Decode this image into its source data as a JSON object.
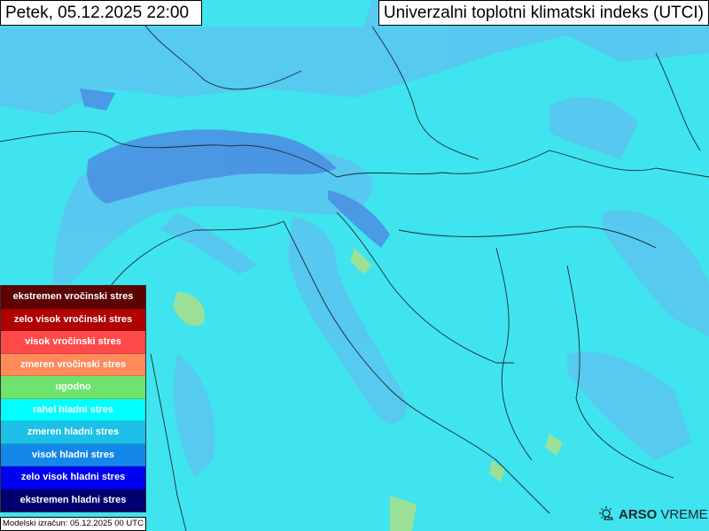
{
  "header": {
    "date_title": "Petek, 05.12.2025 22:00",
    "product_title": "Univerzalni toplotni klimatski indeks (UTCI)"
  },
  "legend": {
    "items": [
      {
        "label": "ekstremen vročinski stres",
        "color": "#5c0000"
      },
      {
        "label": "zelo visok vročinski stres",
        "color": "#b00000"
      },
      {
        "label": "visok vročinski stres",
        "color": "#ff4a4a"
      },
      {
        "label": "zmeren vročinski stres",
        "color": "#ff8a5a"
      },
      {
        "label": "ugodno",
        "color": "#6ee46e"
      },
      {
        "label": "rahel hladni stres",
        "color": "#00ffff"
      },
      {
        "label": "zmeren hladni stres",
        "color": "#1ec0e8"
      },
      {
        "label": "visok hladni stres",
        "color": "#1488e8"
      },
      {
        "label": "zelo visok hladni stres",
        "color": "#0000f0"
      },
      {
        "label": "ekstremen hladni stres",
        "color": "#000070"
      }
    ]
  },
  "footer": {
    "model_run": "Modelski izračun: 05.12.2025 00 UTC",
    "logo_bold": "ARSO",
    "logo_light": "VREME"
  },
  "map_colors": {
    "rahel_hladni": "#3fe4ee",
    "zmeren_hladni": "#55c4f0",
    "visok_hladni": "#4a90e4",
    "ugodno": "#90e090"
  }
}
